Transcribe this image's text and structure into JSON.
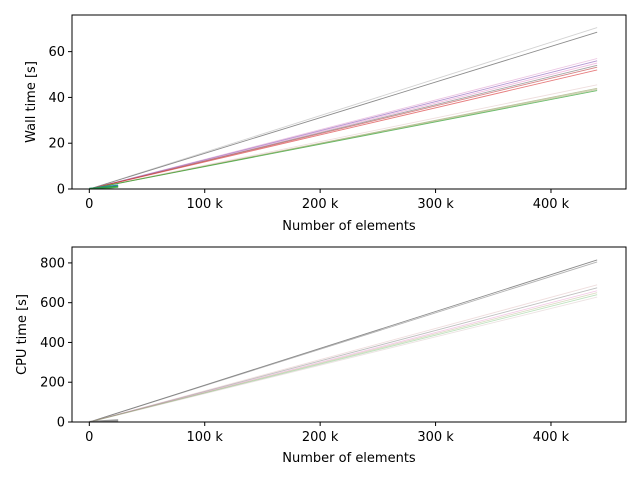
{
  "chart_data": [
    {
      "type": "line",
      "title": "",
      "xlabel": "Number of elements",
      "ylabel": "Wall time [s]",
      "xlim": [
        -15000,
        465000
      ],
      "ylim": [
        0,
        76
      ],
      "xticks": [
        {
          "value": 0,
          "label": "0"
        },
        {
          "value": 100000,
          "label": "100 k"
        },
        {
          "value": 200000,
          "label": "200 k"
        },
        {
          "value": 300000,
          "label": "300 k"
        },
        {
          "value": 400000,
          "label": "400 k"
        }
      ],
      "yticks": [
        {
          "value": 0,
          "label": "0"
        },
        {
          "value": 20,
          "label": "20"
        },
        {
          "value": 40,
          "label": "40"
        },
        {
          "value": 60,
          "label": "60"
        }
      ],
      "grid": false,
      "series": [
        {
          "x": [
            0,
            440000
          ],
          "y": [
            0,
            70.5
          ],
          "color": "#7f7f7f",
          "opacity": 0.35
        },
        {
          "x": [
            0,
            440000
          ],
          "y": [
            0,
            68.5
          ],
          "color": "#7f7f7f",
          "opacity": 0.9
        },
        {
          "x": [
            0,
            440000
          ],
          "y": [
            0,
            57
          ],
          "color": "#d98cc8",
          "opacity": 0.5
        },
        {
          "x": [
            0,
            440000
          ],
          "y": [
            0,
            56
          ],
          "color": "#9467bd",
          "opacity": 0.7
        },
        {
          "x": [
            0,
            440000
          ],
          "y": [
            0,
            55
          ],
          "color": "#e377c2",
          "opacity": 0.5
        },
        {
          "x": [
            0,
            440000
          ],
          "y": [
            0,
            54
          ],
          "color": "#7f7f7f",
          "opacity": 0.7
        },
        {
          "x": [
            0,
            440000
          ],
          "y": [
            0,
            53.2
          ],
          "color": "#c44e52",
          "opacity": 0.7
        },
        {
          "x": [
            0,
            440000
          ],
          "y": [
            0,
            52
          ],
          "color": "#d62728",
          "opacity": 0.6
        },
        {
          "x": [
            0,
            440000
          ],
          "y": [
            0,
            45.5
          ],
          "color": "#d0a0a0",
          "opacity": 0.35
        },
        {
          "x": [
            0,
            440000
          ],
          "y": [
            0,
            44
          ],
          "color": "#8c9c5a",
          "opacity": 0.6
        },
        {
          "x": [
            0,
            440000
          ],
          "y": [
            0,
            43.5
          ],
          "color": "#9c9c5a",
          "opacity": 0.5
        },
        {
          "x": [
            0,
            440000
          ],
          "y": [
            0,
            43
          ],
          "color": "#2ca02c",
          "opacity": 0.7
        }
      ],
      "small_series": [
        {
          "x": [
            0,
            25000
          ],
          "y": [
            0,
            1.5
          ],
          "color": "#1f77b4",
          "opacity": 0.9
        },
        {
          "x": [
            0,
            25000
          ],
          "y": [
            0,
            1.0
          ],
          "color": "#2ca02c",
          "opacity": 0.8
        }
      ]
    },
    {
      "type": "line",
      "title": "",
      "xlabel": "Number of elements",
      "ylabel": "CPU time [s]",
      "xlim": [
        -15000,
        465000
      ],
      "ylim": [
        0,
        880
      ],
      "xticks": [
        {
          "value": 0,
          "label": "0"
        },
        {
          "value": 100000,
          "label": "100 k"
        },
        {
          "value": 200000,
          "label": "200 k"
        },
        {
          "value": 300000,
          "label": "300 k"
        },
        {
          "value": 400000,
          "label": "400 k"
        }
      ],
      "yticks": [
        {
          "value": 0,
          "label": "0"
        },
        {
          "value": 200,
          "label": "200"
        },
        {
          "value": 400,
          "label": "400"
        },
        {
          "value": 600,
          "label": "600"
        },
        {
          "value": 800,
          "label": "800"
        }
      ],
      "grid": false,
      "series": [
        {
          "x": [
            0,
            440000
          ],
          "y": [
            0,
            815
          ],
          "color": "#7f7f7f",
          "opacity": 0.9
        },
        {
          "x": [
            0,
            440000
          ],
          "y": [
            0,
            805
          ],
          "color": "#7f7f7f",
          "opacity": 0.6
        },
        {
          "x": [
            0,
            440000
          ],
          "y": [
            0,
            690
          ],
          "color": "#d0a0a0",
          "opacity": 0.35
        },
        {
          "x": [
            0,
            440000
          ],
          "y": [
            0,
            675
          ],
          "color": "#7f7f7f",
          "opacity": 0.5
        },
        {
          "x": [
            0,
            440000
          ],
          "y": [
            0,
            660
          ],
          "color": "#e377c2",
          "opacity": 0.4
        },
        {
          "x": [
            0,
            440000
          ],
          "y": [
            0,
            650
          ],
          "color": "#9c9c5a",
          "opacity": 0.35
        },
        {
          "x": [
            0,
            440000
          ],
          "y": [
            0,
            640
          ],
          "color": "#2ca02c",
          "opacity": 0.3
        },
        {
          "x": [
            0,
            440000
          ],
          "y": [
            0,
            628
          ],
          "color": "#c0a0a0",
          "opacity": 0.3
        }
      ],
      "small_series": [
        {
          "x": [
            0,
            25000
          ],
          "y": [
            0,
            8
          ],
          "color": "#7f7f7f",
          "opacity": 0.8
        }
      ]
    }
  ]
}
